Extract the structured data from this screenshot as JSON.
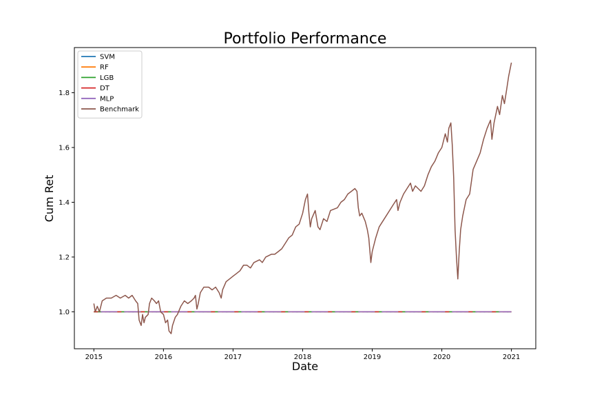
{
  "chart_data": {
    "type": "line",
    "title": "Portfolio Performance",
    "xlabel": "Date",
    "ylabel": "Cum Ret",
    "xlim": [
      2014.72,
      2021.35
    ],
    "ylim": [
      0.865,
      1.965
    ],
    "x_ticks": [
      2015,
      2016,
      2017,
      2018,
      2019,
      2020,
      2021
    ],
    "x_tick_labels": [
      "2015",
      "2016",
      "2017",
      "2018",
      "2019",
      "2020",
      "2021"
    ],
    "y_ticks": [
      1.0,
      1.2,
      1.4,
      1.6,
      1.8
    ],
    "y_tick_labels": [
      "1.0",
      "1.2",
      "1.4",
      "1.6",
      "1.8"
    ],
    "grid": false,
    "legend_position": "top-left",
    "series": [
      {
        "name": "SVM",
        "color": "#1f77b4",
        "style": "flat-dashed",
        "points": [
          [
            2015.0,
            1.0
          ],
          [
            2021.0,
            1.0
          ]
        ]
      },
      {
        "name": "RF",
        "color": "#ff7f0e",
        "style": "flat-dashed",
        "points": [
          [
            2015.0,
            1.0
          ],
          [
            2021.0,
            1.0
          ]
        ]
      },
      {
        "name": "LGB",
        "color": "#2ca02c",
        "style": "flat-dashed",
        "points": [
          [
            2015.0,
            1.0
          ],
          [
            2021.0,
            1.0
          ]
        ]
      },
      {
        "name": "DT",
        "color": "#d62728",
        "style": "flat-dashed",
        "points": [
          [
            2015.0,
            1.0
          ],
          [
            2021.0,
            1.0
          ]
        ]
      },
      {
        "name": "MLP",
        "color": "#9467bd",
        "style": "flat-dashed",
        "points": [
          [
            2015.0,
            1.0
          ],
          [
            2021.0,
            1.0
          ]
        ]
      },
      {
        "name": "Benchmark",
        "color": "#8c564b",
        "style": "solid",
        "points": [
          [
            2015.0,
            1.03
          ],
          [
            2015.02,
            1.0
          ],
          [
            2015.05,
            1.02
          ],
          [
            2015.08,
            1.0
          ],
          [
            2015.12,
            1.04
          ],
          [
            2015.18,
            1.05
          ],
          [
            2015.25,
            1.05
          ],
          [
            2015.32,
            1.06
          ],
          [
            2015.38,
            1.05
          ],
          [
            2015.45,
            1.06
          ],
          [
            2015.5,
            1.05
          ],
          [
            2015.55,
            1.06
          ],
          [
            2015.6,
            1.04
          ],
          [
            2015.63,
            1.03
          ],
          [
            2015.65,
            0.97
          ],
          [
            2015.68,
            0.95
          ],
          [
            2015.7,
            0.99
          ],
          [
            2015.72,
            0.96
          ],
          [
            2015.74,
            0.98
          ],
          [
            2015.78,
            0.99
          ],
          [
            2015.8,
            1.03
          ],
          [
            2015.83,
            1.05
          ],
          [
            2015.87,
            1.04
          ],
          [
            2015.9,
            1.03
          ],
          [
            2015.93,
            1.04
          ],
          [
            2015.96,
            1.0
          ],
          [
            2016.0,
            0.99
          ],
          [
            2016.03,
            0.96
          ],
          [
            2016.06,
            0.97
          ],
          [
            2016.08,
            0.93
          ],
          [
            2016.11,
            0.92
          ],
          [
            2016.13,
            0.95
          ],
          [
            2016.17,
            0.98
          ],
          [
            2016.2,
            0.99
          ],
          [
            2016.25,
            1.02
          ],
          [
            2016.3,
            1.04
          ],
          [
            2016.35,
            1.03
          ],
          [
            2016.4,
            1.04
          ],
          [
            2016.44,
            1.05
          ],
          [
            2016.46,
            1.06
          ],
          [
            2016.48,
            1.01
          ],
          [
            2016.5,
            1.03
          ],
          [
            2016.53,
            1.07
          ],
          [
            2016.58,
            1.09
          ],
          [
            2016.65,
            1.09
          ],
          [
            2016.7,
            1.08
          ],
          [
            2016.75,
            1.09
          ],
          [
            2016.8,
            1.07
          ],
          [
            2016.83,
            1.05
          ],
          [
            2016.85,
            1.08
          ],
          [
            2016.9,
            1.11
          ],
          [
            2016.95,
            1.12
          ],
          [
            2017.0,
            1.13
          ],
          [
            2017.05,
            1.14
          ],
          [
            2017.1,
            1.15
          ],
          [
            2017.15,
            1.17
          ],
          [
            2017.2,
            1.17
          ],
          [
            2017.25,
            1.16
          ],
          [
            2017.3,
            1.18
          ],
          [
            2017.38,
            1.19
          ],
          [
            2017.42,
            1.18
          ],
          [
            2017.47,
            1.2
          ],
          [
            2017.55,
            1.21
          ],
          [
            2017.6,
            1.21
          ],
          [
            2017.65,
            1.22
          ],
          [
            2017.7,
            1.23
          ],
          [
            2017.75,
            1.25
          ],
          [
            2017.8,
            1.27
          ],
          [
            2017.85,
            1.28
          ],
          [
            2017.9,
            1.31
          ],
          [
            2017.95,
            1.32
          ],
          [
            2018.0,
            1.36
          ],
          [
            2018.04,
            1.41
          ],
          [
            2018.07,
            1.43
          ],
          [
            2018.09,
            1.36
          ],
          [
            2018.11,
            1.31
          ],
          [
            2018.13,
            1.34
          ],
          [
            2018.18,
            1.37
          ],
          [
            2018.22,
            1.31
          ],
          [
            2018.25,
            1.3
          ],
          [
            2018.3,
            1.34
          ],
          [
            2018.35,
            1.33
          ],
          [
            2018.4,
            1.37
          ],
          [
            2018.5,
            1.38
          ],
          [
            2018.55,
            1.4
          ],
          [
            2018.6,
            1.41
          ],
          [
            2018.65,
            1.43
          ],
          [
            2018.7,
            1.44
          ],
          [
            2018.75,
            1.45
          ],
          [
            2018.78,
            1.44
          ],
          [
            2018.8,
            1.38
          ],
          [
            2018.82,
            1.35
          ],
          [
            2018.85,
            1.36
          ],
          [
            2018.9,
            1.33
          ],
          [
            2018.93,
            1.3
          ],
          [
            2018.95,
            1.27
          ],
          [
            2018.97,
            1.21
          ],
          [
            2018.98,
            1.18
          ],
          [
            2019.0,
            1.22
          ],
          [
            2019.05,
            1.27
          ],
          [
            2019.1,
            1.31
          ],
          [
            2019.2,
            1.35
          ],
          [
            2019.3,
            1.39
          ],
          [
            2019.35,
            1.41
          ],
          [
            2019.37,
            1.37
          ],
          [
            2019.4,
            1.4
          ],
          [
            2019.45,
            1.43
          ],
          [
            2019.5,
            1.45
          ],
          [
            2019.55,
            1.47
          ],
          [
            2019.58,
            1.44
          ],
          [
            2019.62,
            1.46
          ],
          [
            2019.7,
            1.44
          ],
          [
            2019.75,
            1.46
          ],
          [
            2019.8,
            1.5
          ],
          [
            2019.85,
            1.53
          ],
          [
            2019.9,
            1.55
          ],
          [
            2019.95,
            1.58
          ],
          [
            2020.0,
            1.6
          ],
          [
            2020.05,
            1.65
          ],
          [
            2020.08,
            1.62
          ],
          [
            2020.1,
            1.67
          ],
          [
            2020.13,
            1.69
          ],
          [
            2020.15,
            1.61
          ],
          [
            2020.17,
            1.49
          ],
          [
            2020.19,
            1.3
          ],
          [
            2020.21,
            1.2
          ],
          [
            2020.23,
            1.12
          ],
          [
            2020.25,
            1.22
          ],
          [
            2020.27,
            1.3
          ],
          [
            2020.3,
            1.35
          ],
          [
            2020.35,
            1.41
          ],
          [
            2020.4,
            1.43
          ],
          [
            2020.45,
            1.52
          ],
          [
            2020.5,
            1.55
          ],
          [
            2020.55,
            1.58
          ],
          [
            2020.6,
            1.63
          ],
          [
            2020.65,
            1.67
          ],
          [
            2020.7,
            1.7
          ],
          [
            2020.72,
            1.63
          ],
          [
            2020.75,
            1.69
          ],
          [
            2020.8,
            1.75
          ],
          [
            2020.83,
            1.72
          ],
          [
            2020.87,
            1.79
          ],
          [
            2020.9,
            1.76
          ],
          [
            2020.93,
            1.81
          ],
          [
            2020.96,
            1.86
          ],
          [
            2021.0,
            1.91
          ]
        ]
      }
    ]
  }
}
